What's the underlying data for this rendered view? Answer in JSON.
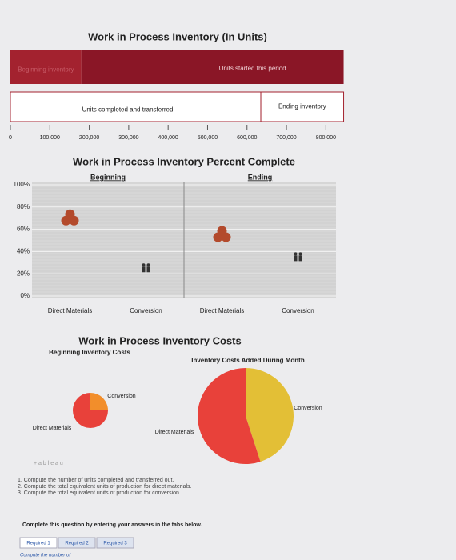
{
  "chart_data": [
    {
      "type": "bar",
      "orientation": "horizontal",
      "stacked": true,
      "title": "Work in Process Inventory (In Units)",
      "series": [
        {
          "name": "Beginning inventory",
          "color": "#a3222f",
          "values": [
            180000,
            null
          ]
        },
        {
          "name": "Units started this period",
          "color": "#8a1626",
          "values": [
            665000,
            null
          ]
        },
        {
          "name": "Units completed and transferred",
          "color": "#ffffff",
          "values": [
            null,
            635000
          ]
        },
        {
          "name": "Ending inventory",
          "color": "#ffffff",
          "values": [
            null,
            210000
          ]
        }
      ],
      "xlim": [
        0,
        850000
      ],
      "xticks": [
        0,
        {
          "value": 100000,
          "label": "100,000"
        },
        {
          "value": 200000,
          "label": "200,000"
        },
        {
          "value": 300000,
          "label": "300,000"
        },
        {
          "value": 400000,
          "label": "400,000"
        },
        {
          "value": 500000,
          "label": "500,000"
        },
        {
          "value": 600000,
          "label": "600,000"
        },
        {
          "value": 700000,
          "label": "700,000"
        },
        {
          "value": 800000,
          "label": "800,000"
        }
      ]
    },
    {
      "type": "scatter",
      "title": "Work in Process Inventory Percent Complete",
      "groups": [
        {
          "name": "Beginning",
          "categories": [
            "Direct Materials",
            "Conversion"
          ],
          "values": [
            70,
            25
          ],
          "colors": [
            "#b34a2c",
            "#333333"
          ]
        },
        {
          "name": "Ending",
          "categories": [
            "Direct Materials",
            "Conversion"
          ],
          "values": [
            55,
            35
          ],
          "colors": [
            "#b34a2c",
            "#333333"
          ]
        }
      ],
      "ylim": [
        0,
        100
      ],
      "yticks": [
        {
          "value": 0,
          "label": "0%"
        },
        {
          "value": 20,
          "label": "20%"
        },
        {
          "value": 40,
          "label": "40%"
        },
        {
          "value": 60,
          "label": "60%"
        },
        {
          "value": 80,
          "label": "80%"
        },
        {
          "value": 100,
          "label": "100%"
        }
      ],
      "grid": true
    },
    {
      "type": "pie",
      "title": "Work in Process Inventory Costs",
      "pies": [
        {
          "name": "Beginning Inventory Costs",
          "categories": [
            "Direct Materials",
            "Conversion"
          ],
          "values": [
            75,
            25
          ],
          "colors": [
            "#e8413a",
            "#f28e2b"
          ]
        },
        {
          "name": "Inventory Costs Added During Month",
          "categories": [
            "Direct Materials",
            "Conversion"
          ],
          "values": [
            55,
            45
          ],
          "colors": [
            "#e8413a",
            "#e3bf36"
          ]
        }
      ]
    }
  ],
  "page": {
    "logo": "+ a b l e a u",
    "instructions": [
      "1. Compute the number of units completed and transferred out.",
      "2. Compute the total equivalent units of production for direct materials.",
      "3. Compute the total equivalent units of production for conversion."
    ],
    "prompt": "Complete this question by entering your answers in the tabs below.",
    "tabs": [
      "Required 1",
      "Required 2",
      "Required 3"
    ],
    "footer": "Compute the number of"
  }
}
